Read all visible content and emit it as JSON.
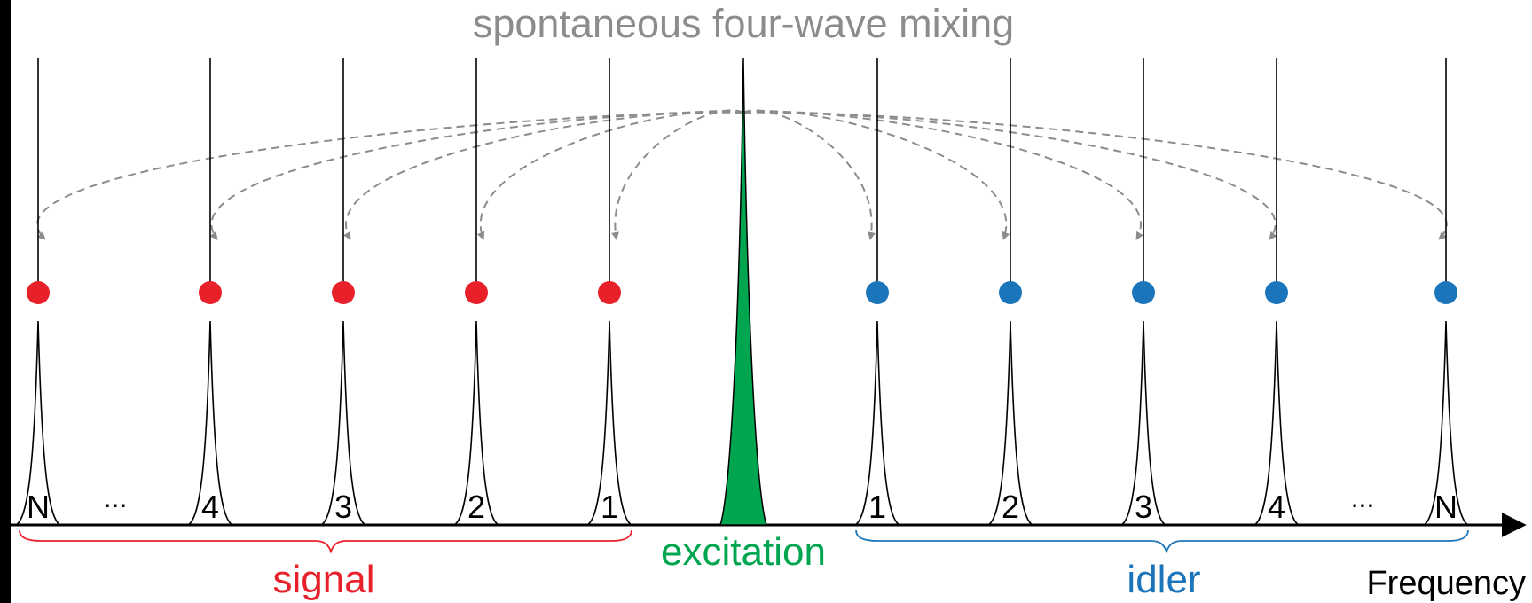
{
  "title": "spontaneous four-wave mixing",
  "axis_label": "Frequency",
  "groups": {
    "signal": {
      "label": "signal",
      "color": "#e8202a"
    },
    "excitation": {
      "label": "excitation",
      "color": "#00a550"
    },
    "idler": {
      "label": "idler",
      "color": "#1b75bb"
    }
  },
  "signal_peaks": [
    {
      "label": "N"
    },
    {
      "label": "4"
    },
    {
      "label": "3"
    },
    {
      "label": "2"
    },
    {
      "label": "1"
    }
  ],
  "idler_peaks": [
    {
      "label": "1"
    },
    {
      "label": "2"
    },
    {
      "label": "3"
    },
    {
      "label": "4"
    },
    {
      "label": "N"
    }
  ],
  "ellipsis": "...",
  "colors": {
    "line": "#000000",
    "arrow": "#8c8c8c",
    "title": "#8c8c8c"
  }
}
